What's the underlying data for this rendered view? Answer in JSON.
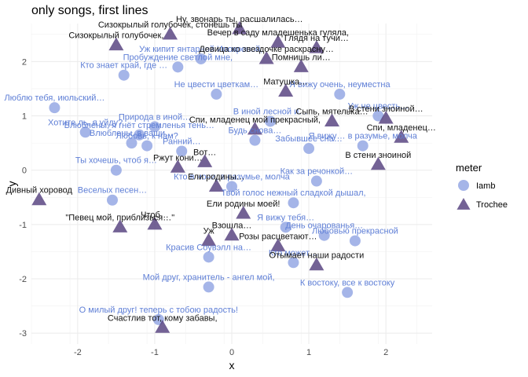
{
  "chart_data": {
    "type": "scatter",
    "title": "only songs, first lines",
    "xlabel": "x",
    "ylabel": "y",
    "xlim": [
      -2.6,
      2.6
    ],
    "ylim": [
      -3.2,
      2.7
    ],
    "x_ticks": [
      -2,
      -1,
      0,
      1,
      2
    ],
    "y_ticks": [
      -3,
      -2,
      -1,
      0,
      1,
      2
    ],
    "grid": true,
    "legend": {
      "title": "meter",
      "position": "right",
      "entries": [
        {
          "name": "Iamb",
          "color": "#8ea2e2",
          "shape": "circle"
        },
        {
          "name": "Trochee",
          "color": "#5b4682",
          "shape": "triangle"
        }
      ]
    },
    "series": [
      {
        "name": "Iamb",
        "color": "#8ea2e2",
        "points": [
          {
            "x": -2.3,
            "y": 1.15,
            "label": "Люблю тебя, июльский…"
          },
          {
            "x": -1.4,
            "y": 1.75,
            "label": "Кто знает край, где …"
          },
          {
            "x": -0.7,
            "y": 1.9,
            "label": "Пробуждение светлой мне,"
          },
          {
            "x": -0.4,
            "y": 2.05,
            "label": "Уж кипит янтарной Ипокреной,"
          },
          {
            "x": -1.2,
            "y": 0.65,
            "label": "Влюблены, я гнёт стремленья тень…"
          },
          {
            "x": -1.3,
            "y": 0.5,
            "label": "Влюблены, в ваши…"
          },
          {
            "x": -1.9,
            "y": 0.7,
            "label": "Хотите ль, я уйду?"
          },
          {
            "x": -1.1,
            "y": 0.45,
            "label": "Любовь, к нам?"
          },
          {
            "x": -1.0,
            "y": 0.8,
            "label": "Природа в иной…"
          },
          {
            "x": -0.2,
            "y": 1.4,
            "label": "Не цвести цветкам…"
          },
          {
            "x": 1.4,
            "y": 1.4,
            "label": "Я вижу очень, неуместна"
          },
          {
            "x": 1.9,
            "y": 1.0,
            "label": "Уж не цвесть…"
          },
          {
            "x": 0.5,
            "y": 0.9,
            "label": "В иной лесной и…"
          },
          {
            "x": -1.5,
            "y": 0.0,
            "label": "Ты хочешь, чтоб я…"
          },
          {
            "x": -1.55,
            "y": -0.55,
            "label": "Веселых песен…"
          },
          {
            "x": 0.0,
            "y": -0.3,
            "label": "Кто в ночи, в разумье, молча"
          },
          {
            "x": 1.0,
            "y": 0.4,
            "label": "Забывшее сна…"
          },
          {
            "x": 1.1,
            "y": -0.2,
            "label": "Как за речонкой…"
          },
          {
            "x": 0.8,
            "y": -0.6,
            "label": "Твой голос нежный сладкой дышал,"
          },
          {
            "x": 0.7,
            "y": -1.05,
            "label": "Я вижу тебя…"
          },
          {
            "x": 1.2,
            "y": -1.2,
            "label": "День очарованья…"
          },
          {
            "x": 1.6,
            "y": -1.3,
            "label": "Любовью прекрасной"
          },
          {
            "x": -0.3,
            "y": -1.6,
            "label": "Красив Соувэлл на…"
          },
          {
            "x": 0.8,
            "y": -1.7,
            "label": "Кто может…"
          },
          {
            "x": -0.3,
            "y": -2.15,
            "label": "Мой друг, хранитель - ангел мой,"
          },
          {
            "x": 1.5,
            "y": -2.25,
            "label": "К востоку, все к востоку"
          },
          {
            "x": -0.95,
            "y": -2.75,
            "label": "О милый друг! теперь с тобою радость!"
          },
          {
            "x": -0.65,
            "y": 0.35,
            "label": "Ранний…"
          },
          {
            "x": 0.3,
            "y": 0.55,
            "label": "Будь снова…"
          },
          {
            "x": 1.7,
            "y": 0.45,
            "label": "Я вижу… в разумье, молча"
          }
        ]
      },
      {
        "name": "Trochee",
        "color": "#5b4682",
        "points": [
          {
            "x": -1.5,
            "y": 2.3,
            "label": "Сизокрылый голубочек,"
          },
          {
            "x": -0.8,
            "y": 2.5,
            "label": "Сизокрылый голубочек, стонешь ты"
          },
          {
            "x": 0.1,
            "y": 2.6,
            "label": "Ну, звонарь ты, расшалилась…"
          },
          {
            "x": 0.6,
            "y": 2.35,
            "label": "Вечер в саду младешенька гуляла,"
          },
          {
            "x": 1.1,
            "y": 2.25,
            "label": "Глядя на тучи…"
          },
          {
            "x": 0.45,
            "y": 2.05,
            "label": "Девица ко звездочке раскрасну…"
          },
          {
            "x": -2.5,
            "y": -0.55,
            "label": "Дивный хоровод"
          },
          {
            "x": -1.45,
            "y": -1.05,
            "label": "\"Певец мой, приблизься…\""
          },
          {
            "x": -1.0,
            "y": -1.0,
            "label": "Чтоб…"
          },
          {
            "x": -0.9,
            "y": -2.9,
            "label": "Счастлив тот, кому забавы,"
          },
          {
            "x": 1.1,
            "y": -1.75,
            "label": "Отымает наши радости"
          },
          {
            "x": 0.6,
            "y": -1.4,
            "label": "Розы расцветают…"
          },
          {
            "x": -0.3,
            "y": -1.3,
            "label": "Уж"
          },
          {
            "x": 0.0,
            "y": -1.2,
            "label": "Взошла…"
          },
          {
            "x": -0.7,
            "y": 0.05,
            "label": "Ржут кони…"
          },
          {
            "x": -0.2,
            "y": -0.3,
            "label": "Ели родины…"
          },
          {
            "x": 2.0,
            "y": 0.95,
            "label": "В стени зноиной…"
          },
          {
            "x": 1.9,
            "y": 0.1,
            "label": "В стени зноиной"
          },
          {
            "x": 0.9,
            "y": 1.9,
            "label": "Помнишь ли…"
          },
          {
            "x": 0.7,
            "y": 1.45,
            "label": "Матушка…"
          },
          {
            "x": 0.3,
            "y": 0.75,
            "label": "Спи, младенец мой прекрасный,"
          },
          {
            "x": -0.35,
            "y": 0.15,
            "label": "Вот…"
          },
          {
            "x": 0.15,
            "y": -0.8,
            "label": "Ели родины моей!"
          },
          {
            "x": 1.3,
            "y": 0.9,
            "label": "Сыпь, мятелька…"
          },
          {
            "x": 2.2,
            "y": 0.6,
            "label": "Спи, младенец…"
          }
        ]
      }
    ]
  }
}
